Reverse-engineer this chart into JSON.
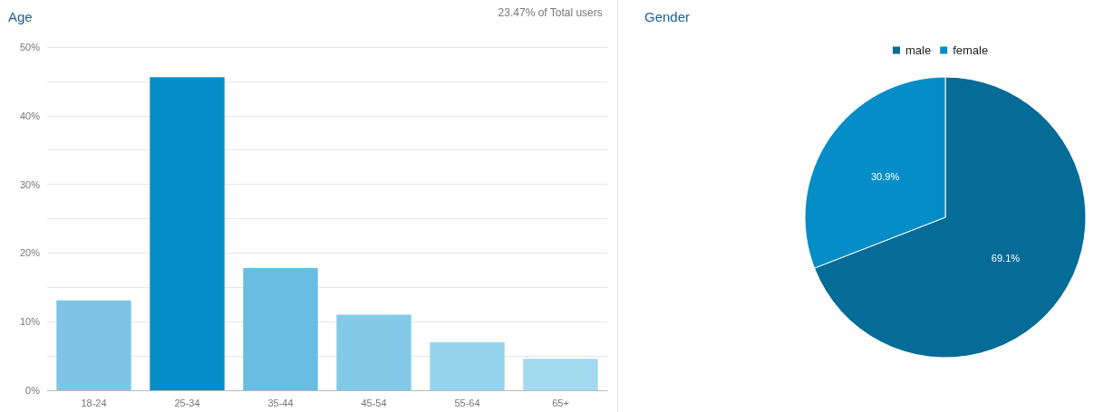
{
  "chart_data": [
    {
      "type": "bar",
      "title": "Age",
      "annotations": [
        "23.47% of Total users"
      ],
      "categories": [
        "18-24",
        "25-34",
        "35-44",
        "45-54",
        "55-64",
        "65+"
      ],
      "values": [
        13.1,
        45.6,
        17.8,
        11.0,
        7.0,
        4.6
      ],
      "colors": [
        "#7cc5e5",
        "#058dc7",
        "#6abde2",
        "#82cbe8",
        "#95d4ed",
        "#a2d9ef"
      ],
      "ylim": [
        0,
        50
      ],
      "yticks": [
        {
          "value": 0,
          "label": "0%"
        },
        {
          "value": 5,
          "label": null
        },
        {
          "value": 10,
          "label": "10%"
        },
        {
          "value": 15,
          "label": null
        },
        {
          "value": 20,
          "label": "20%"
        },
        {
          "value": 25,
          "label": null
        },
        {
          "value": 30,
          "label": "30%"
        },
        {
          "value": 35,
          "label": null
        },
        {
          "value": 40,
          "label": "40%"
        },
        {
          "value": 45,
          "label": null
        },
        {
          "value": 50,
          "label": "50%"
        }
      ],
      "grid": "y"
    },
    {
      "type": "pie",
      "title": "Gender",
      "categories": [
        "male",
        "female"
      ],
      "values": [
        69.1,
        30.9
      ],
      "colors": [
        "#056b97",
        "#058dc7"
      ],
      "value_labels": [
        "69.1%",
        "30.9%"
      ],
      "legend": "top"
    }
  ]
}
